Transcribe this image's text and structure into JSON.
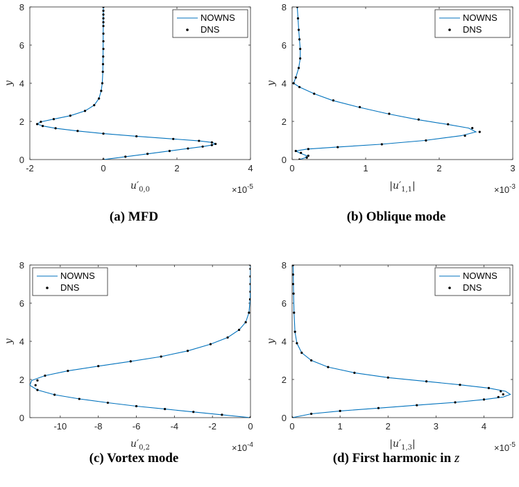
{
  "captions": {
    "a": "(a) MFD",
    "b": "(b) Oblique mode",
    "c": "(c) Vortex mode",
    "d_prefix": "(d) First harmonic in ",
    "d_var": "z"
  },
  "colors": {
    "nowns": "#0072BD",
    "dns": "#000000",
    "axis": "#262626"
  },
  "chart_data": [
    {
      "id": "a",
      "type": "line",
      "xlabel": "u'_{0,0}",
      "ylabel": "y",
      "x_exponent": "×10^-5",
      "xlim": [
        -2,
        4
      ],
      "ylim": [
        0,
        8
      ],
      "xticks": [
        -2,
        0,
        2,
        4
      ],
      "xticklabels": [
        "-2",
        "0",
        "2",
        "4"
      ],
      "yticks": [
        0,
        2,
        4,
        6,
        8
      ],
      "yticklabels": [
        "0",
        "2",
        "4",
        "6",
        "8"
      ],
      "legend": {
        "position": "top-right",
        "entries": [
          "NOWNS",
          "DNS"
        ]
      },
      "series": [
        {
          "name": "NOWNS",
          "style": "line",
          "x": [
            0.0,
            0.6,
            1.2,
            1.8,
            2.3,
            2.7,
            2.95,
            3.05,
            2.95,
            2.6,
            1.9,
            0.9,
            0.0,
            -0.7,
            -1.3,
            -1.65,
            -1.8,
            -1.7,
            -1.35,
            -0.9,
            -0.5,
            -0.25,
            -0.12,
            -0.06,
            -0.03,
            -0.015,
            -0.01,
            -0.005,
            0.0
          ],
          "y": [
            0.0,
            0.15,
            0.3,
            0.45,
            0.58,
            0.68,
            0.76,
            0.82,
            0.9,
            0.98,
            1.08,
            1.22,
            1.36,
            1.5,
            1.64,
            1.76,
            1.86,
            1.98,
            2.12,
            2.3,
            2.55,
            2.85,
            3.2,
            3.6,
            4.0,
            4.6,
            5.5,
            6.5,
            8.0
          ]
        },
        {
          "name": "DNS",
          "style": "markers",
          "x": [
            0.0,
            0.6,
            1.2,
            1.8,
            2.3,
            2.7,
            2.95,
            3.05,
            2.95,
            2.6,
            1.9,
            0.9,
            0.0,
            -0.7,
            -1.3,
            -1.65,
            -1.8,
            -1.7,
            -1.35,
            -0.9,
            -0.5,
            -0.25,
            -0.12,
            -0.06,
            -0.03,
            -0.015,
            -0.01,
            -0.005,
            0.0,
            0.0,
            0.0,
            0.0,
            0.0,
            0.0,
            0.0,
            0.0,
            0.0
          ],
          "y": [
            0.0,
            0.15,
            0.3,
            0.45,
            0.58,
            0.68,
            0.76,
            0.82,
            0.9,
            0.98,
            1.08,
            1.22,
            1.36,
            1.5,
            1.64,
            1.76,
            1.86,
            1.98,
            2.12,
            2.3,
            2.55,
            2.85,
            3.2,
            3.6,
            4.0,
            4.6,
            5.0,
            5.4,
            5.8,
            6.2,
            6.6,
            7.0,
            7.2,
            7.4,
            7.6,
            7.8,
            8.0
          ]
        }
      ]
    },
    {
      "id": "b",
      "type": "line",
      "xlabel": "|u'_{1,1}|",
      "ylabel": "y",
      "x_exponent": "×10^-3",
      "xlim": [
        0,
        3
      ],
      "ylim": [
        0,
        8
      ],
      "xticks": [
        0,
        1,
        2,
        3
      ],
      "xticklabels": [
        "0",
        "1",
        "2",
        "3"
      ],
      "yticks": [
        0,
        2,
        4,
        6,
        8
      ],
      "yticklabels": [
        "0",
        "2",
        "4",
        "6",
        "8"
      ],
      "legend": {
        "position": "top-right",
        "entries": [
          "NOWNS",
          "DNS"
        ]
      },
      "series": [
        {
          "name": "NOWNS",
          "style": "line",
          "x": [
            0.1,
            0.18,
            0.2,
            0.1,
            0.05,
            0.2,
            0.6,
            1.2,
            1.8,
            2.3,
            2.5,
            2.4,
            2.1,
            1.7,
            1.3,
            0.9,
            0.55,
            0.3,
            0.1,
            0.02,
            0.05,
            0.09,
            0.11,
            0.11,
            0.1,
            0.09,
            0.08,
            0.07
          ],
          "y": [
            0.0,
            0.1,
            0.2,
            0.35,
            0.45,
            0.55,
            0.65,
            0.8,
            1.0,
            1.25,
            1.45,
            1.65,
            1.85,
            2.1,
            2.4,
            2.75,
            3.1,
            3.45,
            3.8,
            4.0,
            4.3,
            4.8,
            5.3,
            5.8,
            6.3,
            6.8,
            7.4,
            8.0
          ]
        },
        {
          "name": "DNS",
          "style": "markers",
          "x": [
            0.1,
            0.2,
            0.22,
            0.12,
            0.05,
            0.22,
            0.62,
            1.22,
            1.82,
            2.35,
            2.55,
            2.45,
            2.12,
            1.72,
            1.32,
            0.92,
            0.56,
            0.3,
            0.1,
            0.02,
            0.05,
            0.09,
            0.11,
            0.11,
            0.1,
            0.09,
            0.08,
            0.07
          ],
          "y": [
            0.0,
            0.1,
            0.2,
            0.35,
            0.45,
            0.55,
            0.65,
            0.8,
            1.0,
            1.25,
            1.45,
            1.65,
            1.85,
            2.1,
            2.4,
            2.75,
            3.1,
            3.45,
            3.8,
            4.0,
            4.3,
            4.8,
            5.3,
            5.8,
            6.3,
            6.8,
            7.4,
            8.0
          ]
        }
      ]
    },
    {
      "id": "c",
      "type": "line",
      "xlabel": "u'_{0,2}",
      "ylabel": "y",
      "x_exponent": "×10^-4",
      "xlim": [
        -11.6,
        0
      ],
      "ylim": [
        0,
        8
      ],
      "xticks": [
        -10,
        -8,
        -6,
        -4,
        -2,
        0
      ],
      "xticklabels": [
        "-10",
        "-8",
        "-6",
        "-4",
        "-2",
        "0"
      ],
      "yticks": [
        0,
        2,
        4,
        6,
        8
      ],
      "yticklabels": [
        "0",
        "2",
        "4",
        "6",
        "8"
      ],
      "legend": {
        "position": "top-left",
        "entries": [
          "NOWNS",
          "DNS"
        ]
      },
      "series": [
        {
          "name": "NOWNS",
          "style": "line",
          "x": [
            0.0,
            -1.5,
            -3.0,
            -4.5,
            -6.0,
            -7.5,
            -9.0,
            -10.3,
            -11.2,
            -11.6,
            -11.5,
            -10.8,
            -9.6,
            -8.0,
            -6.3,
            -4.7,
            -3.3,
            -2.1,
            -1.2,
            -0.6,
            -0.25,
            -0.08,
            -0.02,
            0.0
          ],
          "y": [
            0.0,
            0.15,
            0.3,
            0.45,
            0.6,
            0.78,
            0.98,
            1.2,
            1.45,
            1.7,
            1.95,
            2.2,
            2.45,
            2.7,
            2.95,
            3.2,
            3.5,
            3.85,
            4.2,
            4.6,
            5.0,
            5.5,
            6.2,
            8.0
          ]
        },
        {
          "name": "DNS",
          "style": "markers",
          "x": [
            0.0,
            -1.5,
            -3.0,
            -4.5,
            -6.0,
            -7.5,
            -9.0,
            -10.3,
            -11.2,
            -11.3,
            -11.2,
            -10.8,
            -9.6,
            -8.0,
            -6.3,
            -4.7,
            -3.3,
            -2.1,
            -1.2,
            -0.6,
            -0.25,
            -0.08,
            -0.02,
            0.0,
            0.0,
            0.0,
            0.0,
            0.0
          ],
          "y": [
            0.0,
            0.15,
            0.3,
            0.45,
            0.6,
            0.78,
            0.98,
            1.2,
            1.45,
            1.7,
            1.95,
            2.2,
            2.45,
            2.7,
            2.95,
            3.2,
            3.5,
            3.85,
            4.2,
            4.6,
            5.0,
            5.5,
            6.2,
            6.6,
            7.0,
            7.4,
            7.8,
            8.0
          ]
        }
      ]
    },
    {
      "id": "d",
      "type": "line",
      "xlabel": "|u'_{1,3}|",
      "ylabel": "y",
      "x_exponent": "×10^-5",
      "xlim": [
        0,
        4.6
      ],
      "ylim": [
        0,
        8
      ],
      "xticks": [
        0,
        1,
        2,
        3,
        4
      ],
      "xticklabels": [
        "0",
        "1",
        "2",
        "3",
        "4"
      ],
      "yticks": [
        0,
        2,
        4,
        6,
        8
      ],
      "yticklabels": [
        "0",
        "2",
        "4",
        "6",
        "8"
      ],
      "legend": {
        "position": "top-right",
        "entries": [
          "NOWNS",
          "DNS"
        ]
      },
      "series": [
        {
          "name": "NOWNS",
          "style": "line",
          "x": [
            0.0,
            0.4,
            1.0,
            1.8,
            2.6,
            3.4,
            4.0,
            4.4,
            4.55,
            4.45,
            4.1,
            3.5,
            2.8,
            2.0,
            1.3,
            0.75,
            0.4,
            0.2,
            0.1,
            0.06,
            0.04,
            0.03,
            0.02
          ],
          "y": [
            0.0,
            0.2,
            0.35,
            0.5,
            0.65,
            0.8,
            0.95,
            1.08,
            1.22,
            1.38,
            1.55,
            1.72,
            1.9,
            2.1,
            2.35,
            2.65,
            3.0,
            3.4,
            3.9,
            4.5,
            5.5,
            6.5,
            8.0
          ]
        },
        {
          "name": "DNS",
          "style": "markers",
          "x": [
            0.0,
            0.4,
            1.0,
            1.8,
            2.6,
            3.4,
            4.0,
            4.3,
            4.4,
            4.35,
            4.1,
            3.5,
            2.8,
            2.0,
            1.3,
            0.75,
            0.4,
            0.2,
            0.1,
            0.06,
            0.04,
            0.03,
            0.02,
            0.02,
            0.02
          ],
          "y": [
            0.0,
            0.2,
            0.35,
            0.5,
            0.65,
            0.8,
            0.95,
            1.08,
            1.22,
            1.38,
            1.55,
            1.72,
            1.9,
            2.1,
            2.35,
            2.65,
            3.0,
            3.4,
            3.9,
            4.5,
            5.5,
            6.5,
            7.0,
            7.5,
            8.0
          ]
        }
      ]
    }
  ]
}
